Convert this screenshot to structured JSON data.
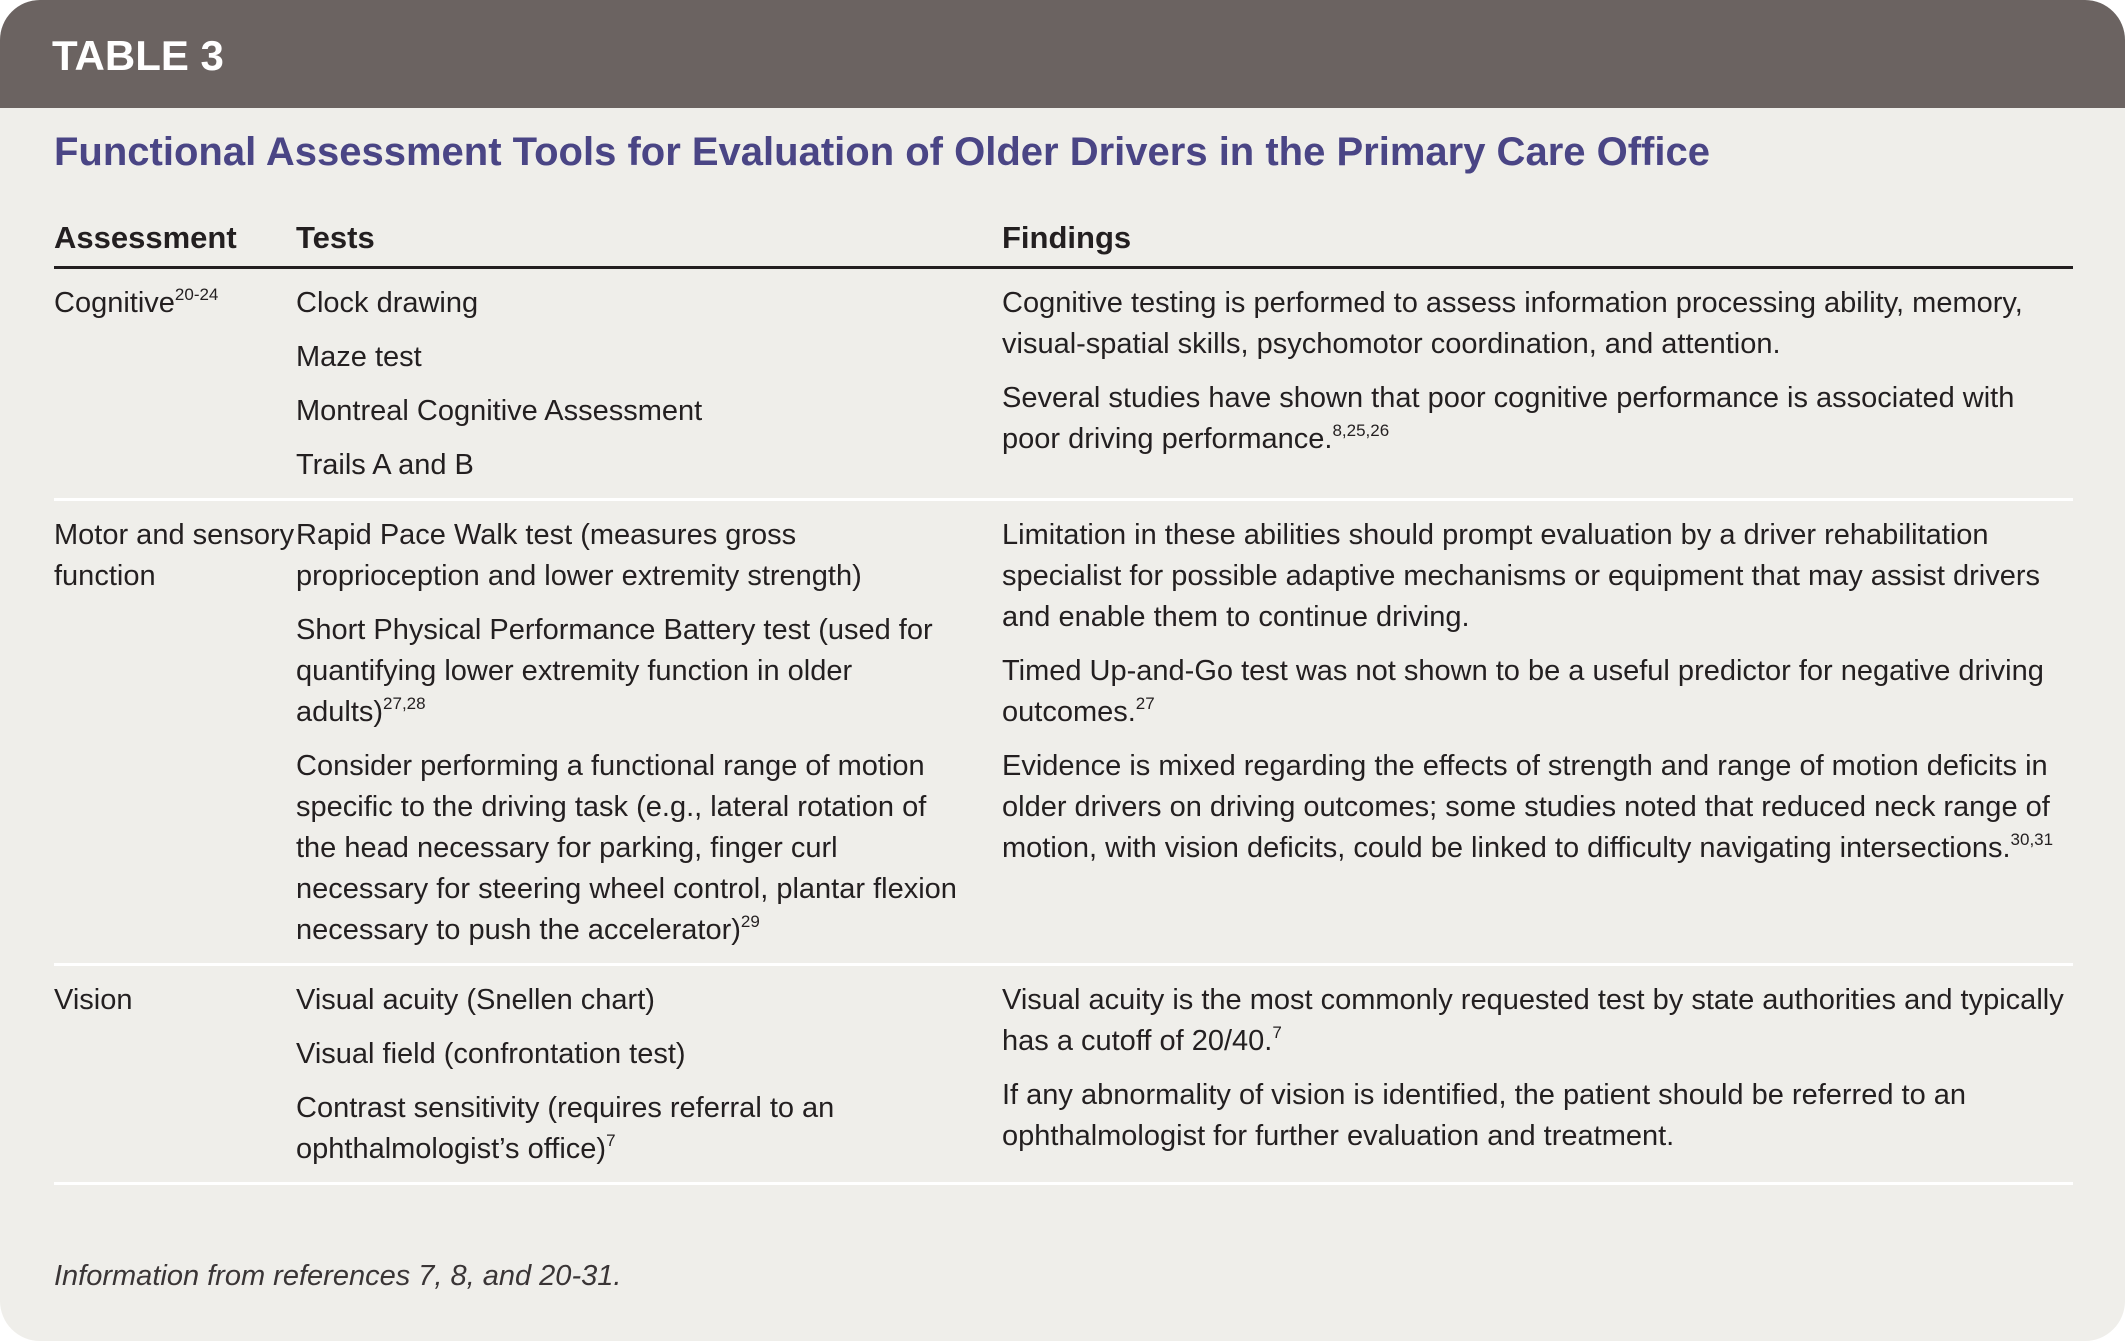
{
  "header": {
    "label": "TABLE 3"
  },
  "title": "Functional Assessment Tools for Evaluation of Older Drivers in the Primary Care Office",
  "table": {
    "columns": [
      "Assessment",
      "Tests",
      "Findings"
    ],
    "rows": [
      {
        "assessment": {
          "text": "Cognitive",
          "sup": "20-24"
        },
        "tests": [
          {
            "text": "Clock drawing"
          },
          {
            "text": "Maze test"
          },
          {
            "text": "Montreal Cognitive Assessment"
          },
          {
            "text": "Trails A and B"
          }
        ],
        "findings": [
          {
            "text": "Cognitive testing is performed to assess information processing ability, memory, visual-spatial skills, psychomotor coordination, and attention."
          },
          {
            "text": "Several studies have shown that poor cognitive performance is associated with poor driving performance.",
            "sup": "8,25,26"
          }
        ]
      },
      {
        "assessment": {
          "text": "Motor and sensory function"
        },
        "tests": [
          {
            "text": "Rapid Pace Walk test (measures gross proprioception and lower extremity strength)"
          },
          {
            "text": "Short Physical Performance Battery test (used for quantifying lower extremity function in older adults)",
            "sup": "27,28"
          },
          {
            "text": "Consider performing a functional range of motion specific to the driving task (e.g., lateral rotation of the head necessary for parking, finger curl necessary for steering wheel control, plantar flexion necessary to push the accelerator)",
            "sup": "29"
          }
        ],
        "findings": [
          {
            "text": "Limitation in these abilities should prompt evaluation by a driver rehabilitation specialist for possible adaptive mechanisms or equipment that may assist drivers and enable them to continue driving."
          },
          {
            "text": "Timed Up-and-Go test was not shown to be a useful predictor for negative driving outcomes.",
            "sup": "27"
          },
          {
            "text": "Evidence is mixed regarding the effects of strength and range of motion deficits in older drivers on driving outcomes; some studies noted that reduced neck range of motion, with vision deficits, could be linked to difficulty navigating intersections.",
            "sup": "30,31"
          }
        ]
      },
      {
        "assessment": {
          "text": "Vision"
        },
        "tests": [
          {
            "text": "Visual acuity (Snellen chart)"
          },
          {
            "text": "Visual field (confrontation test)"
          },
          {
            "text": "Contrast sensitivity (requires referral to an ophthalmologist’s office)",
            "sup": "7"
          }
        ],
        "findings": [
          {
            "text": "Visual acuity is the most commonly requested test by state authorities and typically has a cutoff of 20/40.",
            "sup": "7"
          },
          {
            "text": "If any abnormality of vision is identified, the patient should be referred to an ophthalmologist for further evaluation and treatment."
          }
        ]
      }
    ]
  },
  "footnote": "Information from references 7, 8, and 20-31."
}
